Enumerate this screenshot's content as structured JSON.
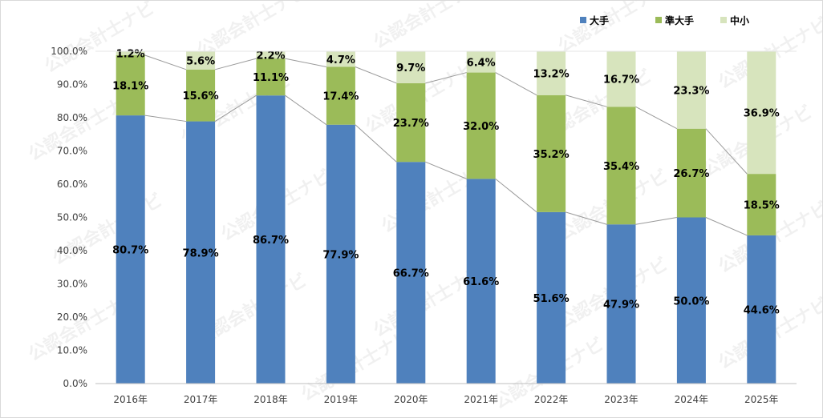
{
  "chart_data": {
    "type": "bar",
    "stacked": true,
    "title": "",
    "xlabel": "",
    "ylabel": "",
    "ylim": [
      0,
      100
    ],
    "y_ticks": [
      "0.0%",
      "10.0%",
      "20.0%",
      "30.0%",
      "40.0%",
      "50.0%",
      "60.0%",
      "70.0%",
      "80.0%",
      "90.0%",
      "100.0%"
    ],
    "grid": false,
    "legend_position": "top-right",
    "connector_lines": true,
    "categories": [
      "2016年",
      "2017年",
      "2018年",
      "2019年",
      "2020年",
      "2021年",
      "2022年",
      "2023年",
      "2024年",
      "2025年"
    ],
    "series": [
      {
        "name": "大手",
        "color": "#4f81bd",
        "values": [
          80.7,
          78.9,
          86.7,
          77.9,
          66.7,
          61.6,
          51.6,
          47.9,
          50.0,
          44.6
        ],
        "labels": [
          "80.7%",
          "78.9%",
          "86.7%",
          "77.9%",
          "66.7%",
          "61.6%",
          "51.6%",
          "47.9%",
          "50.0%",
          "44.6%"
        ]
      },
      {
        "name": "準大手",
        "color": "#9bbb59",
        "values": [
          18.1,
          15.6,
          11.1,
          17.4,
          23.7,
          32.0,
          35.2,
          35.4,
          26.7,
          18.5
        ],
        "labels": [
          "18.1%",
          "15.6%",
          "11.1%",
          "17.4%",
          "23.7%",
          "32.0%",
          "35.2%",
          "35.4%",
          "26.7%",
          "18.5%"
        ]
      },
      {
        "name": "中小",
        "color": "#d7e4bd",
        "values": [
          1.2,
          5.6,
          2.2,
          4.7,
          9.7,
          6.4,
          13.2,
          16.7,
          23.3,
          36.9
        ],
        "labels": [
          "1.2%",
          "5.6%",
          "2.2%",
          "4.7%",
          "9.7%",
          "6.4%",
          "13.2%",
          "16.7%",
          "23.3%",
          "36.9%"
        ]
      }
    ]
  },
  "watermark": "公認会計士ナビ"
}
